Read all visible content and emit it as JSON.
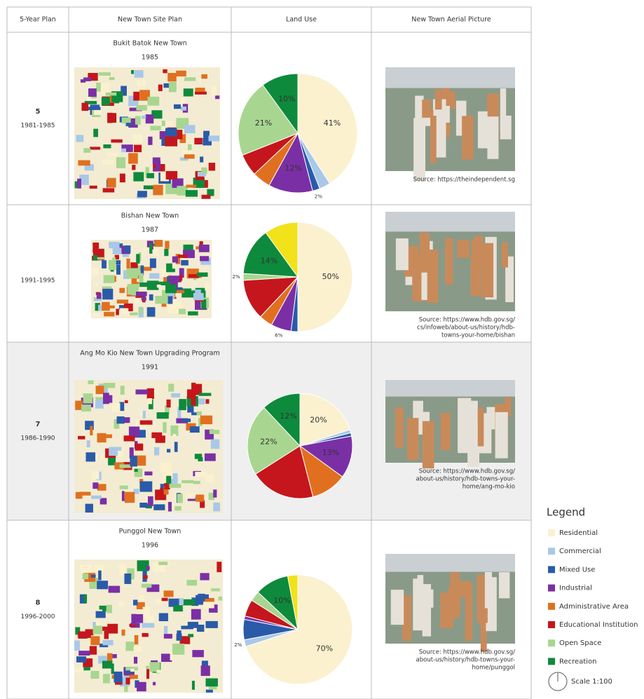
{
  "table": {
    "header": [
      "5-Year Plan",
      "New Town Site Plan",
      "Land Use",
      "New Town Aerial Picture"
    ],
    "rows": [
      {
        "plan": "5",
        "period": "1981-1985",
        "town": "Bukit Batok New Town",
        "year": "1985",
        "slices": [
          {
            "color": "#fbf1cf",
            "value": 41,
            "label": "41%"
          },
          {
            "color": "#a9c8e8",
            "value": 3
          },
          {
            "color": "#2a5aa8",
            "value": 2,
            "label": "2%"
          },
          {
            "color": "#7b2fa5",
            "value": 12,
            "label": "12%"
          },
          {
            "color": "#e07020",
            "value": 5
          },
          {
            "color": "#c4161c",
            "value": 6
          },
          {
            "color": "#a8d690",
            "value": 21,
            "label": "21%"
          },
          {
            "color": "#0e8a3c",
            "value": 10,
            "label": "10%"
          }
        ],
        "source": [
          "Source: https://theindependent.sg"
        ]
      },
      {
        "period": "1991-1995",
        "town": "Bishan New Town",
        "year": "1987",
        "slices": [
          {
            "color": "#fbf1cf",
            "value": 50,
            "label": "50%"
          },
          {
            "color": "#2a5aa8",
            "value": 2
          },
          {
            "color": "#7b2fa5",
            "value": 6,
            "label": "6%"
          },
          {
            "color": "#e07020",
            "value": 4
          },
          {
            "color": "#c4161c",
            "value": 12
          },
          {
            "color": "#a8d690",
            "value": 2,
            "label": "2%"
          },
          {
            "color": "#0e8a3c",
            "value": 14,
            "label": "14%"
          },
          {
            "color": "#f2e21a",
            "value": 10
          }
        ],
        "source": [
          "Source: https://www.hdb.gov.sg/",
          "cs/infoweb/about-us/history/hdb-",
          "towns-your-home/bishan"
        ]
      },
      {
        "plan": "7",
        "period": "1986-1990",
        "town": "Ang Mo Kio New Town Upgrading Program",
        "year": "1991",
        "slices": [
          {
            "color": "#fbf1cf",
            "value": 20,
            "label": "20%"
          },
          {
            "color": "#a9c8e8",
            "value": 1
          },
          {
            "color": "#2a5aa8",
            "value": 1
          },
          {
            "color": "#7b2fa5",
            "value": 13,
            "label": "13%"
          },
          {
            "color": "#e07020",
            "value": 11
          },
          {
            "color": "#c4161c",
            "value": 20
          },
          {
            "color": "#a8d690",
            "value": 22,
            "label": "22%"
          },
          {
            "color": "#0e8a3c",
            "value": 12,
            "label": "12%"
          }
        ],
        "source": [
          "Source: https://www.hdb.gov.sg/",
          "about-us/history/hdb-towns-your-",
          "home/ang-mo-kio"
        ]
      },
      {
        "plan": "8",
        "period": "1996-2000",
        "town": "Punggol New Town",
        "year": "1996",
        "slices": [
          {
            "color": "#fbf1cf",
            "value": 70,
            "label": "70%"
          },
          {
            "color": "#a9c8e8",
            "value": 2,
            "label": "2%"
          },
          {
            "color": "#2a5aa8",
            "value": 6
          },
          {
            "color": "#7b2fa5",
            "value": 1
          },
          {
            "color": "#c4161c",
            "value": 5
          },
          {
            "color": "#a8d690",
            "value": 3
          },
          {
            "color": "#0e8a3c",
            "value": 10,
            "label": "10%"
          },
          {
            "color": "#f2e21a",
            "value": 3
          }
        ],
        "source": [
          "Source: https://www.hdb.gov.sg/",
          "about-us/history/hdb-towns-your-",
          "home/punggol"
        ]
      }
    ]
  },
  "legend": {
    "title": "Legend",
    "items": [
      {
        "name": "Residential",
        "color": "#fbf1cf"
      },
      {
        "name": "Commercial",
        "color": "#a9c8e8"
      },
      {
        "name": "Mixed Use",
        "color": "#2a5aa8"
      },
      {
        "name": "Industrial",
        "color": "#7b2fa5"
      },
      {
        "name": "Administrative Area",
        "color": "#e07020"
      },
      {
        "name": "Educational Institution",
        "color": "#c4161c"
      },
      {
        "name": "Open Space",
        "color": "#a8d690"
      },
      {
        "name": "Recreation",
        "color": "#0e8a3c"
      }
    ],
    "scale": "Scale 1:100"
  }
}
